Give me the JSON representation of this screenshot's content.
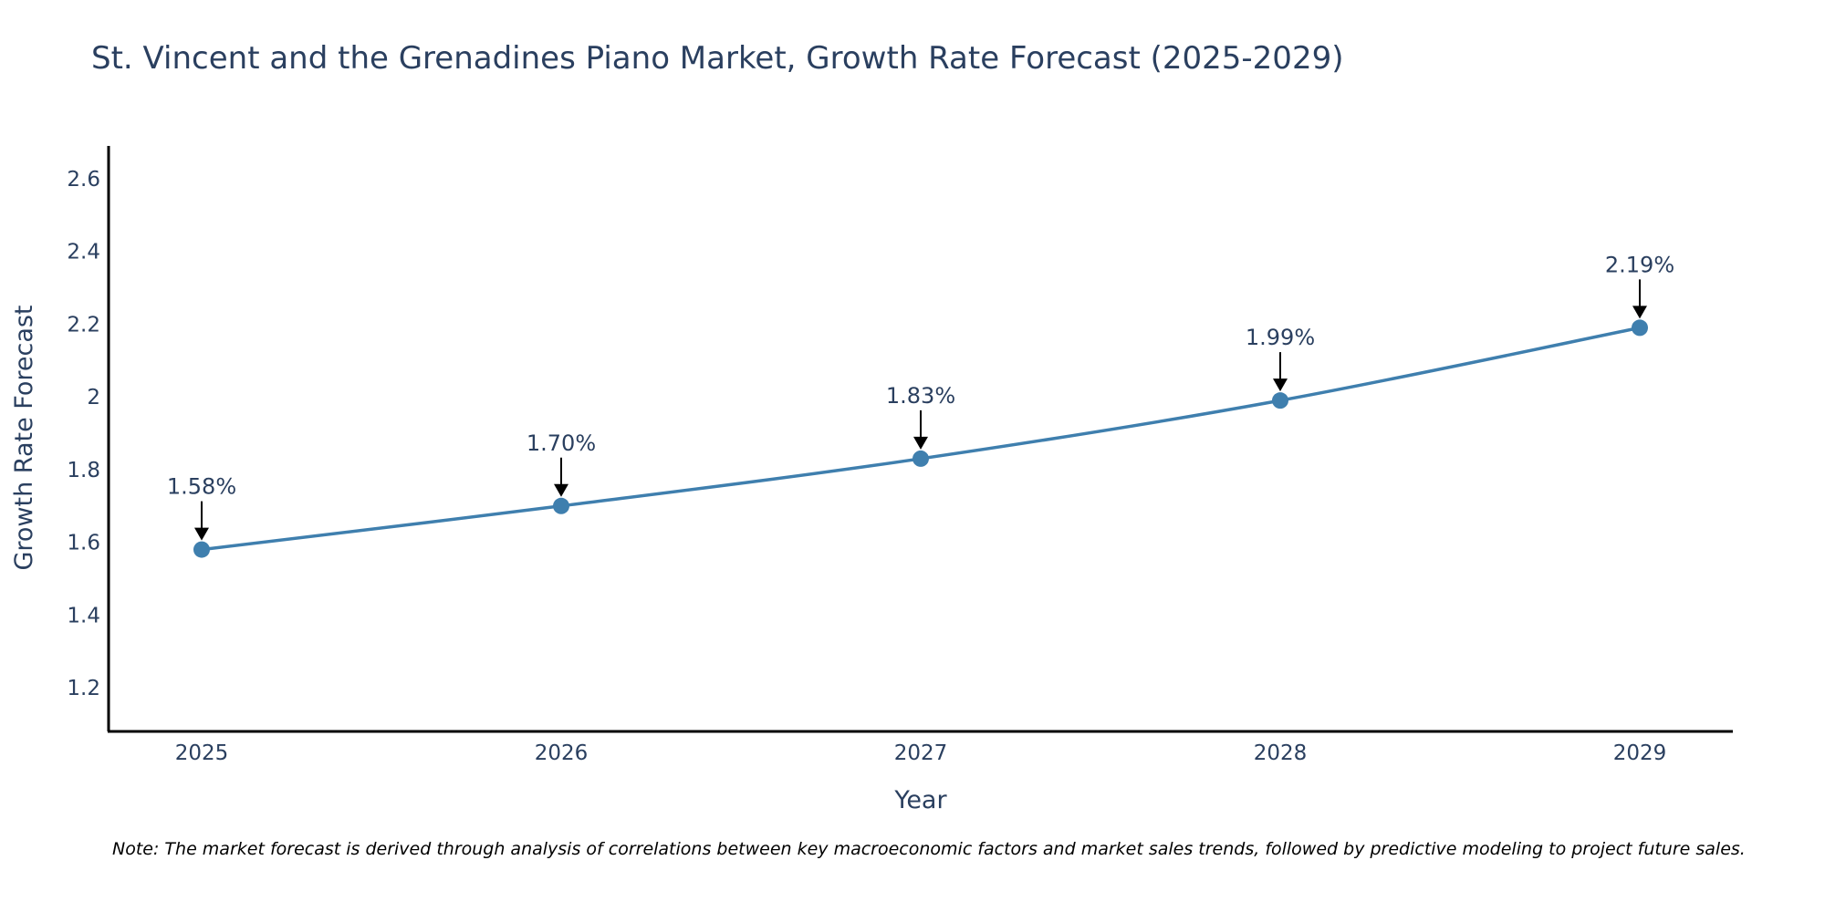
{
  "chart_data": {
    "type": "line",
    "title": "St. Vincent and the Grenadines Piano Market, Growth Rate Forecast (2025-2029)",
    "xlabel": "Year",
    "ylabel": "Growth Rate Forecast",
    "categories": [
      "2025",
      "2026",
      "2027",
      "2028",
      "2029"
    ],
    "values": [
      1.58,
      1.7,
      1.83,
      1.99,
      2.19
    ],
    "data_labels": [
      "1.58%",
      "1.70%",
      "1.83%",
      "1.99%",
      "2.19%"
    ],
    "y_ticks": [
      "1.2",
      "1.4",
      "1.6",
      "1.8",
      "2",
      "2.2",
      "2.4",
      "2.6"
    ],
    "ylim": [
      1.08,
      2.69
    ],
    "grid": false,
    "line_color": "#3f7fae",
    "marker_color": "#3f7fae",
    "arrow_color": "#000000"
  },
  "note": "Note: The market forecast is derived through analysis of correlations between key macroeconomic factors and market sales trends, followed by predictive modeling to project future sales."
}
